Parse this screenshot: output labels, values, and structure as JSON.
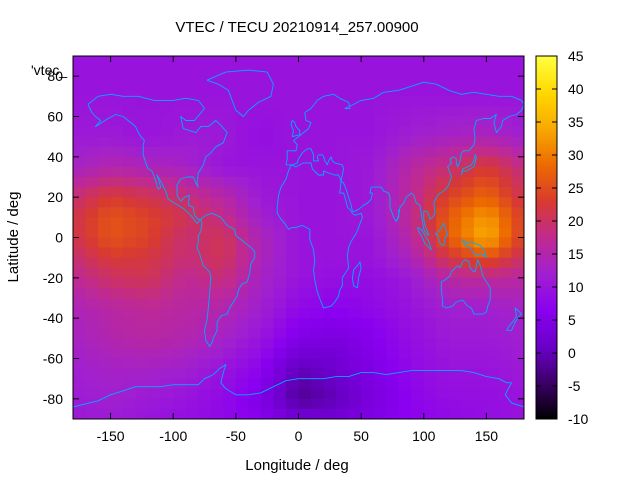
{
  "chart_data": {
    "type": "heatmap",
    "title": "VTEC / TECU 20210914_257.00900",
    "xlabel": "Longitude / deg",
    "ylabel": "Latitude / deg",
    "key_label": "'vtec_",
    "xlim": [
      -180,
      180
    ],
    "ylim": [
      -90,
      90
    ],
    "x_ticks": [
      -150,
      -100,
      -50,
      0,
      50,
      100,
      150
    ],
    "y_ticks": [
      -80,
      -60,
      -40,
      -20,
      0,
      20,
      40,
      60,
      80
    ],
    "colorbar": {
      "range": [
        -10,
        45
      ],
      "ticks": [
        -10,
        -5,
        0,
        5,
        10,
        15,
        20,
        25,
        30,
        35,
        40,
        45
      ],
      "palette": [
        "#000000",
        "#3b0066",
        "#6a00c8",
        "#8a00f0",
        "#a020d0",
        "#c02a90",
        "#d83a30",
        "#ec6a00",
        "#f8a800",
        "#ffd800",
        "#ffff40"
      ]
    },
    "grid": false,
    "coastline_color": "#00aaff",
    "grid_spacing_deg": [
      10,
      5
    ],
    "lat_rows": [
      90,
      70,
      50,
      35,
      20,
      10,
      0,
      -10,
      -20,
      -35,
      -50,
      -65,
      -80,
      -90
    ],
    "lon_cols": [
      -180,
      -150,
      -120,
      -90,
      -60,
      -30,
      0,
      30,
      60,
      90,
      120,
      150,
      180
    ],
    "values": [
      [
        10,
        10,
        10,
        10,
        10,
        10,
        10,
        10,
        10,
        10,
        10,
        10,
        10
      ],
      [
        10,
        10,
        10,
        10,
        10,
        10,
        10,
        10,
        10,
        10,
        10,
        10,
        10
      ],
      [
        11,
        11,
        10,
        11,
        11,
        9,
        10,
        10,
        10,
        12,
        13,
        14,
        12
      ],
      [
        13,
        15,
        14,
        13,
        10,
        10,
        10,
        10,
        11,
        16,
        19,
        23,
        18
      ],
      [
        19,
        23,
        21,
        19,
        16,
        11,
        10,
        10,
        11,
        17,
        24,
        28,
        21
      ],
      [
        21,
        26,
        24,
        21,
        18,
        12,
        10,
        10,
        11,
        17,
        27,
        33,
        23
      ],
      [
        21,
        26,
        24,
        19,
        21,
        14,
        10,
        10,
        10,
        16,
        27,
        35,
        23
      ],
      [
        19,
        23,
        22,
        19,
        21,
        14,
        10,
        10,
        10,
        14,
        22,
        26,
        20
      ],
      [
        17,
        20,
        21,
        17,
        19,
        13,
        10,
        9,
        9,
        11,
        16,
        17,
        16
      ],
      [
        14,
        16,
        17,
        16,
        15,
        12,
        8,
        7,
        8,
        10,
        12,
        12,
        13
      ],
      [
        13,
        15,
        16,
        15,
        13,
        10,
        5,
        4,
        6,
        9,
        11,
        11,
        12
      ],
      [
        12,
        13,
        13,
        12,
        10,
        7,
        0,
        2,
        5,
        8,
        10,
        10,
        11
      ],
      [
        11,
        12,
        11,
        10,
        8,
        5,
        -2,
        0,
        4,
        7,
        9,
        9,
        10
      ],
      [
        11,
        11,
        10,
        9,
        8,
        6,
        3,
        3,
        5,
        7,
        8,
        9,
        10
      ]
    ]
  }
}
